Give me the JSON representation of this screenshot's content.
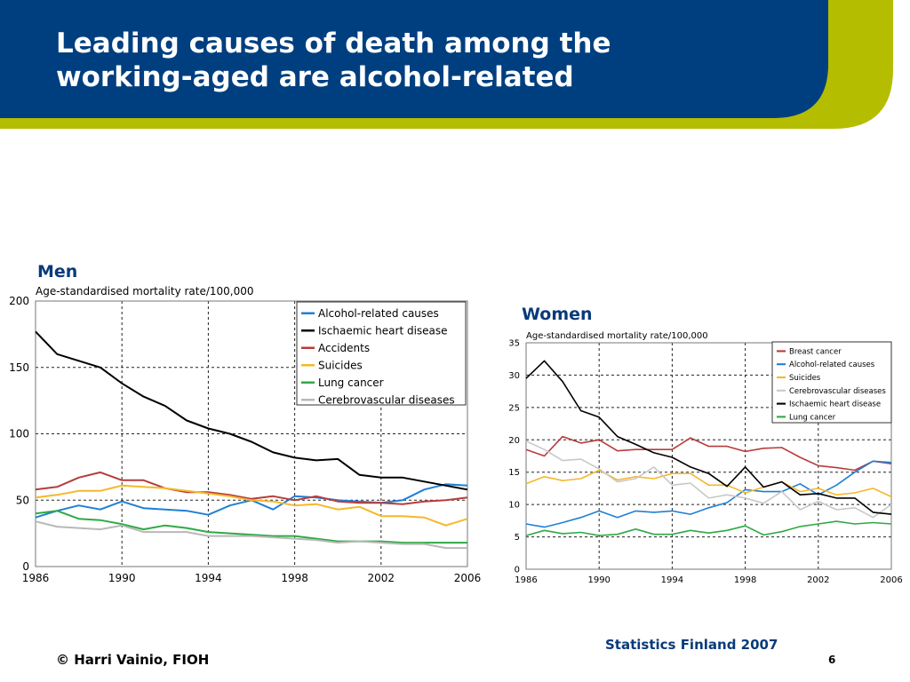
{
  "slide": {
    "title_line1": "Leading causes of death among the",
    "title_line2": "working-aged are alcohol-related",
    "source": "Statistics Finland 2007",
    "copyright": "© Harri Vainio, FIOH",
    "page_number": "6"
  },
  "colors": {
    "header_blue": "#003f7f",
    "accent_green": "#b5bd00",
    "label_blue": "#0a3a7a"
  },
  "chart_data": [
    {
      "type": "line",
      "panel_label": "Men",
      "ylabel": "Age-standardised mortality rate/100,000",
      "ylim": [
        0,
        200
      ],
      "yticks": [
        0,
        50,
        100,
        150,
        200
      ],
      "xlim": [
        1986,
        2006
      ],
      "xticks": [
        1986,
        1990,
        1994,
        1998,
        2002,
        2006
      ],
      "grid": true,
      "legend_position": "top-right",
      "x": [
        1986,
        1987,
        1988,
        1989,
        1990,
        1991,
        1992,
        1993,
        1994,
        1995,
        1996,
        1997,
        1998,
        1999,
        2000,
        2001,
        2002,
        2003,
        2004,
        2005,
        2006
      ],
      "series": [
        {
          "name": "Alcohol-related causes",
          "color": "#1f7fd6",
          "values": [
            37,
            42,
            46,
            43,
            49,
            44,
            43,
            42,
            39,
            46,
            50,
            43,
            53,
            52,
            50,
            49,
            48,
            50,
            58,
            62,
            61
          ]
        },
        {
          "name": "Ischaemic heart disease",
          "color": "#000000",
          "values": [
            177,
            160,
            155,
            150,
            138,
            128,
            121,
            110,
            104,
            100,
            94,
            86,
            82,
            80,
            81,
            69,
            67,
            67,
            64,
            61,
            58
          ]
        },
        {
          "name": "Accidents",
          "color": "#b83c3c",
          "values": [
            58,
            60,
            67,
            71,
            65,
            65,
            59,
            56,
            56,
            54,
            51,
            53,
            50,
            53,
            49,
            48,
            48,
            47,
            49,
            50,
            52
          ]
        },
        {
          "name": "Suicides",
          "color": "#f5b82a",
          "values": [
            52,
            54,
            57,
            57,
            61,
            60,
            59,
            57,
            55,
            53,
            50,
            49,
            46,
            47,
            43,
            45,
            38,
            38,
            37,
            31,
            36
          ]
        },
        {
          "name": "Lung cancer",
          "color": "#2eaa44",
          "values": [
            40,
            42,
            36,
            35,
            32,
            28,
            31,
            29,
            26,
            25,
            24,
            23,
            23,
            21,
            19,
            19,
            19,
            18,
            18,
            18,
            18
          ]
        },
        {
          "name": "Cerebrovascular diseases",
          "color": "#b8b8b8",
          "values": [
            34,
            30,
            29,
            28,
            31,
            26,
            26,
            26,
            23,
            23,
            23,
            22,
            21,
            20,
            18,
            19,
            18,
            17,
            17,
            14,
            14
          ]
        }
      ]
    },
    {
      "type": "line",
      "panel_label": "Women",
      "ylabel": "Age-standardised mortality rate/100,000",
      "ylim": [
        0,
        35
      ],
      "yticks": [
        0,
        5,
        10,
        15,
        20,
        25,
        30,
        35
      ],
      "xlim": [
        1986,
        2006
      ],
      "xticks": [
        1986,
        1990,
        1994,
        1998,
        2002,
        2006
      ],
      "grid": true,
      "legend_position": "top-right",
      "x": [
        1986,
        1987,
        1988,
        1989,
        1990,
        1991,
        1992,
        1993,
        1994,
        1995,
        1996,
        1997,
        1998,
        1999,
        2000,
        2001,
        2002,
        2003,
        2004,
        2005,
        2006
      ],
      "series": [
        {
          "name": "Breast cancer",
          "color": "#b83c3c",
          "values": [
            18.5,
            17.5,
            20.5,
            19.5,
            20.0,
            18.3,
            18.5,
            18.5,
            18.5,
            20.3,
            19.0,
            19.0,
            18.2,
            18.7,
            18.8,
            17.3,
            16.0,
            15.7,
            15.3,
            16.7,
            16.3
          ]
        },
        {
          "name": "Alcohol-related causes",
          "color": "#1f7fd6",
          "values": [
            7.0,
            6.5,
            7.2,
            8.0,
            9.0,
            8.0,
            9.0,
            8.8,
            9.0,
            8.5,
            9.5,
            10.3,
            12.3,
            12.0,
            12.0,
            13.2,
            11.5,
            13.0,
            15.0,
            16.7,
            16.5
          ]
        },
        {
          "name": "Suicides",
          "color": "#f5b82a",
          "values": [
            13.2,
            14.3,
            13.7,
            14.0,
            15.3,
            13.8,
            14.3,
            14.0,
            14.8,
            14.8,
            13.0,
            13.0,
            11.8,
            12.7,
            13.5,
            12.0,
            12.5,
            11.5,
            11.8,
            12.5,
            11.2
          ]
        },
        {
          "name": "Cerebrovascular diseases",
          "color": "#c8c8c8",
          "values": [
            19.8,
            18.5,
            16.8,
            17.0,
            15.5,
            13.5,
            14.0,
            15.8,
            13.0,
            13.3,
            11.0,
            11.5,
            11.0,
            10.2,
            12.0,
            9.2,
            10.5,
            9.2,
            9.5,
            8.0,
            10.0
          ]
        },
        {
          "name": "Ischaemic heart disease",
          "color": "#000000",
          "values": [
            29.5,
            32.2,
            29.0,
            24.5,
            23.5,
            20.5,
            19.3,
            18.0,
            17.3,
            15.8,
            14.8,
            12.8,
            15.8,
            12.7,
            13.5,
            11.5,
            11.7,
            11.0,
            11.0,
            8.8,
            8.5
          ]
        },
        {
          "name": "Lung cancer",
          "color": "#2eaa44",
          "values": [
            5.2,
            6.0,
            5.5,
            5.7,
            5.2,
            5.4,
            6.2,
            5.4,
            5.4,
            6.0,
            5.6,
            6.0,
            6.7,
            5.3,
            5.8,
            6.6,
            7.0,
            7.4,
            7.0,
            7.2,
            7.0
          ]
        }
      ]
    }
  ]
}
